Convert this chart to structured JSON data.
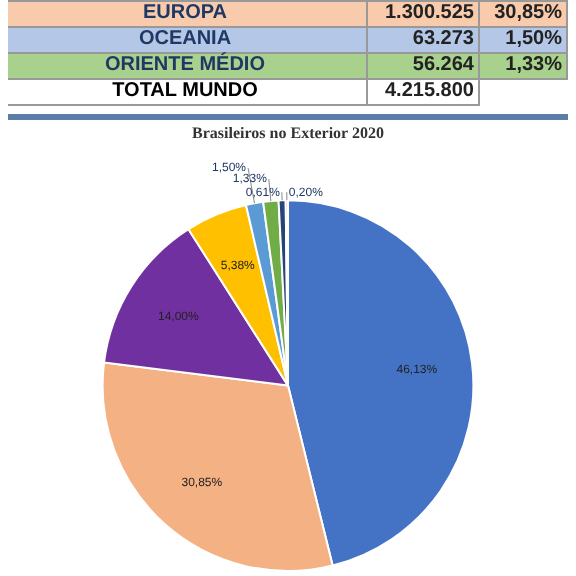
{
  "chart_data": {
    "type": "pie",
    "title": "Brasileiros no Exterior 2020",
    "categories": [
      null,
      null,
      null,
      null,
      null,
      null,
      null,
      null
    ],
    "values": [
      46.13,
      30.85,
      14.0,
      5.38,
      1.5,
      1.33,
      0.61,
      0.2
    ],
    "value_labels": [
      "46,13%",
      "30,85%",
      "14,00%",
      "5,38%",
      "1,50%",
      "1,33%",
      "0,61%",
      "0,20%"
    ],
    "colors": [
      "#4472c4",
      "#f4b183",
      "#7030a0",
      "#ffc000",
      "#5b9bd5",
      "#70ad47",
      "#264478",
      "#d9a0a0"
    ],
    "legend": false,
    "annotations": [
      "EUROPA",
      "1.300.525",
      "30,85%",
      "OCEANIA",
      "63.273",
      "1,50%",
      "ORIENTE MÉDIO",
      "56.264",
      "1,33%",
      "TOTAL MUNDO",
      "4.215.800"
    ]
  }
}
